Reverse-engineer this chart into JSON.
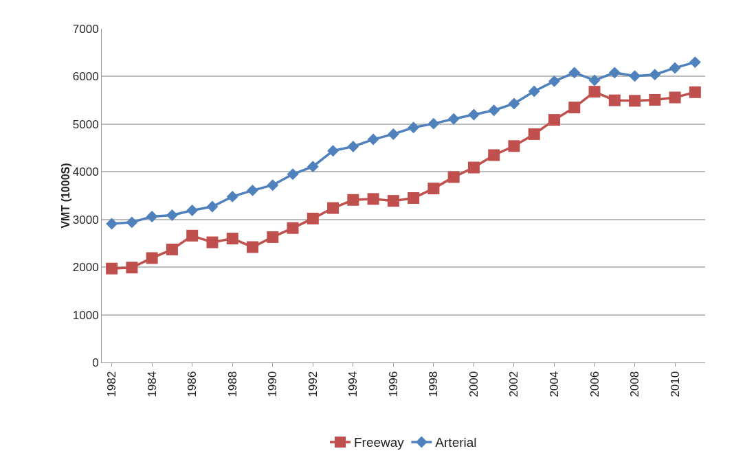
{
  "chart_data": {
    "type": "line",
    "ylabel": "VMT (1000S)",
    "categories": [
      "1982",
      null,
      "1984",
      null,
      "1986",
      null,
      "1988",
      null,
      "1990",
      null,
      "1992",
      null,
      "1994",
      null,
      "1996",
      null,
      "1998",
      null,
      "2000",
      null,
      "2002",
      null,
      "2004",
      null,
      "2006",
      null,
      "2008",
      null,
      "2010",
      null
    ],
    "series": [
      {
        "name": "Freeway",
        "color": "#c0504d",
        "marker": "square",
        "values": [
          1970,
          1990,
          2190,
          2370,
          2660,
          2520,
          2600,
          2420,
          2630,
          2820,
          3020,
          3240,
          3410,
          3430,
          3390,
          3450,
          3650,
          3890,
          4090,
          4350,
          4540,
          4790,
          5090,
          5350,
          5680,
          5500,
          5490,
          5510,
          5560,
          5670
        ]
      },
      {
        "name": "Arterial",
        "color": "#4f81bd",
        "marker": "diamond",
        "values": [
          2910,
          2940,
          3060,
          3090,
          3190,
          3270,
          3480,
          3610,
          3720,
          3950,
          4110,
          4440,
          4530,
          4680,
          4790,
          4930,
          5010,
          5110,
          5200,
          5290,
          5430,
          5690,
          5900,
          6080,
          5920,
          6080,
          6010,
          6040,
          6180,
          6300
        ]
      }
    ],
    "ylim": [
      0,
      7000
    ],
    "yticks": [
      0,
      1000,
      2000,
      3000,
      4000,
      5000,
      6000,
      7000
    ],
    "grid": "y",
    "legend": "bottom",
    "line_style": "solid"
  }
}
